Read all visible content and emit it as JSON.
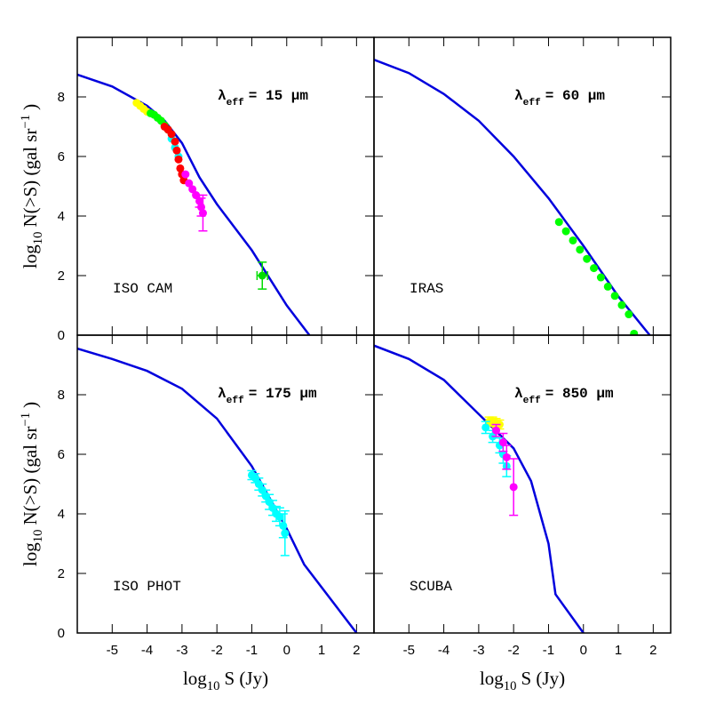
{
  "chart_data": [
    {
      "type": "line",
      "wavelength": [
        {
          "text": "λ"
        },
        {
          "text": "eff",
          "script": "sub"
        },
        {
          "text": "= 15 μm"
        }
      ],
      "label": "ISO CAM",
      "ylabel": [
        {
          "text": "log"
        },
        {
          "text": "10",
          "script": "sub"
        },
        {
          "text": "N(>S) (gal sr"
        },
        {
          "text": "−1",
          "script": "sup"
        },
        {
          "text": ")"
        }
      ],
      "xlim": [
        -6,
        2.5
      ],
      "ylim": [
        0,
        10
      ],
      "xticks": [
        -5,
        -4,
        -3,
        -2,
        -1,
        0,
        1,
        2
      ],
      "yticks": [
        0,
        2,
        4,
        6,
        8
      ],
      "xtick_labels": false,
      "ytick_labels": true,
      "series": [
        {
          "color": "#0000dd",
          "mode": "line",
          "x": [
            -6,
            -5,
            -4,
            -3.5,
            -3,
            -2.5,
            -2,
            -1,
            0,
            0.65
          ],
          "values": [
            8.75,
            8.35,
            7.7,
            7.2,
            6.45,
            5.3,
            4.4,
            2.85,
            1.0,
            0
          ]
        },
        {
          "color": "#ffff00",
          "mode": "markers",
          "x": [
            -4.3,
            -4.2,
            -4.1,
            -4.0
          ],
          "values": [
            7.8,
            7.7,
            7.6,
            7.5
          ]
        },
        {
          "color": "#00ff00",
          "mode": "markers",
          "x": [
            -3.9,
            -3.8,
            -3.7,
            -3.6,
            -3.5,
            -3.4
          ],
          "values": [
            7.45,
            7.4,
            7.3,
            7.2,
            7.05,
            6.9
          ]
        },
        {
          "color": "#00ffff",
          "mode": "markers",
          "x": [
            -3.3,
            -3.2,
            -3.1
          ],
          "values": [
            6.6,
            6.3,
            6.0
          ]
        },
        {
          "color": "#ff0000",
          "mode": "markers",
          "x": [
            -3.5,
            -3.4,
            -3.3,
            -3.2,
            -3.15,
            -3.1,
            -3.05,
            -3.0,
            -2.95
          ],
          "values": [
            7.0,
            6.9,
            6.75,
            6.5,
            6.2,
            5.9,
            5.6,
            5.4,
            5.2
          ]
        },
        {
          "color": "#ff00ff",
          "mode": "markers",
          "x": [
            -2.9,
            -2.8,
            -2.7,
            -2.6,
            -2.5,
            -2.45,
            -2.4
          ],
          "values": [
            5.4,
            5.1,
            4.9,
            4.7,
            4.5,
            4.3,
            4.1
          ],
          "yerr": [
            null,
            null,
            null,
            null,
            0.2,
            0.3,
            0.6
          ]
        },
        {
          "color": "#00dd00",
          "mode": "markers",
          "x": [
            -0.7
          ],
          "values": [
            2.0
          ],
          "yerr": [
            0.45
          ],
          "xerr": [
            0.15
          ]
        }
      ]
    },
    {
      "type": "line",
      "wavelength": [
        {
          "text": "λ"
        },
        {
          "text": "eff",
          "script": "sub"
        },
        {
          "text": "= 60 μm"
        }
      ],
      "label": "IRAS",
      "xlim": [
        -6,
        2.5
      ],
      "ylim": [
        0,
        10
      ],
      "xticks": [
        -5,
        -4,
        -3,
        -2,
        -1,
        0,
        1,
        2
      ],
      "yticks": [
        0,
        2,
        4,
        6,
        8
      ],
      "xtick_labels": false,
      "ytick_labels": false,
      "series": [
        {
          "color": "#0000dd",
          "mode": "line",
          "x": [
            -6,
            -5,
            -4,
            -3,
            -2,
            -1,
            0,
            1,
            1.9
          ],
          "values": [
            9.25,
            8.8,
            8.1,
            7.2,
            6.0,
            4.6,
            3.0,
            1.3,
            0
          ]
        },
        {
          "color": "#00ff00",
          "mode": "markers",
          "x": [
            -0.7,
            -0.5,
            -0.3,
            -0.1,
            0.1,
            0.3,
            0.5,
            0.7,
            0.9,
            1.1,
            1.3,
            1.45
          ],
          "values": [
            3.8,
            3.49,
            3.18,
            2.87,
            2.56,
            2.25,
            1.94,
            1.63,
            1.32,
            1.01,
            0.7,
            0.05
          ]
        }
      ]
    },
    {
      "type": "line",
      "wavelength": [
        {
          "text": "λ"
        },
        {
          "text": "eff",
          "script": "sub"
        },
        {
          "text": "= 175 μm"
        }
      ],
      "label": "ISO PHOT",
      "xlabel": [
        {
          "text": "log"
        },
        {
          "text": "10",
          "script": "sub"
        },
        {
          "text": "S (Jy)"
        }
      ],
      "ylabel": [
        {
          "text": "log"
        },
        {
          "text": "10",
          "script": "sub"
        },
        {
          "text": "N(>S) (gal sr"
        },
        {
          "text": "−1",
          "script": "sup"
        },
        {
          "text": ")"
        }
      ],
      "xlim": [
        -6,
        2.5
      ],
      "ylim": [
        0,
        10
      ],
      "xticks": [
        -5,
        -4,
        -3,
        -2,
        -1,
        0,
        1,
        2
      ],
      "yticks": [
        0,
        2,
        4,
        6,
        8
      ],
      "xtick_labels": true,
      "ytick_labels": true,
      "series": [
        {
          "color": "#0000dd",
          "mode": "line",
          "x": [
            -6,
            -5,
            -4,
            -3,
            -2,
            -1,
            0,
            0.5,
            2
          ],
          "values": [
            9.55,
            9.2,
            8.8,
            8.2,
            7.2,
            5.6,
            3.5,
            2.3,
            0
          ]
        },
        {
          "color": "#00ffff",
          "mode": "markers",
          "x": [
            -1.0,
            -0.9,
            -0.8,
            -0.7,
            -0.6,
            -0.5,
            -0.4,
            -0.3,
            -0.2,
            -0.1,
            -0.05
          ],
          "values": [
            5.3,
            5.2,
            5.0,
            4.8,
            4.6,
            4.4,
            4.2,
            4.0,
            3.9,
            3.6,
            3.35
          ],
          "yerr": [
            0.15,
            0.15,
            0.2,
            0.2,
            0.2,
            0.25,
            0.25,
            0.25,
            0.3,
            0.4,
            0.75
          ]
        }
      ]
    },
    {
      "type": "line",
      "wavelength": [
        {
          "text": "λ"
        },
        {
          "text": "eff",
          "script": "sub"
        },
        {
          "text": "= 850 μm"
        }
      ],
      "label": "SCUBA",
      "xlabel": [
        {
          "text": "log"
        },
        {
          "text": "10",
          "script": "sub"
        },
        {
          "text": "S (Jy)"
        }
      ],
      "xlim": [
        -6,
        2.5
      ],
      "ylim": [
        0,
        10
      ],
      "xticks": [
        -5,
        -4,
        -3,
        -2,
        -1,
        0,
        1,
        2
      ],
      "yticks": [
        0,
        2,
        4,
        6,
        8
      ],
      "xtick_labels": true,
      "ytick_labels": false,
      "series": [
        {
          "color": "#0000dd",
          "mode": "line",
          "x": [
            -6,
            -5,
            -4,
            -3,
            -2,
            -1.5,
            -1,
            -0.8,
            0
          ],
          "values": [
            9.65,
            9.2,
            8.5,
            7.35,
            6.2,
            5.1,
            3.0,
            1.3,
            0
          ]
        },
        {
          "color": "#ffff00",
          "mode": "markers",
          "x": [
            -2.7,
            -2.6,
            -2.5,
            -2.4
          ],
          "values": [
            7.1,
            7.1,
            7.05,
            7.0
          ],
          "yerr": [
            0.15,
            0.15,
            0.15,
            0.15
          ]
        },
        {
          "color": "#00ffff",
          "mode": "markers",
          "x": [
            -2.8,
            -2.6,
            -2.4,
            -2.3,
            -2.2
          ],
          "values": [
            6.9,
            6.6,
            6.3,
            6.0,
            5.6
          ],
          "yerr": [
            0.2,
            0.2,
            0.25,
            0.3,
            0.35
          ]
        },
        {
          "color": "#ff00ff",
          "mode": "markers",
          "x": [
            -2.5,
            -2.3,
            -2.2,
            -2.0
          ],
          "values": [
            6.8,
            6.4,
            5.9,
            4.9
          ],
          "yerr": [
            0.2,
            0.3,
            0.4,
            0.95
          ]
        }
      ]
    }
  ]
}
